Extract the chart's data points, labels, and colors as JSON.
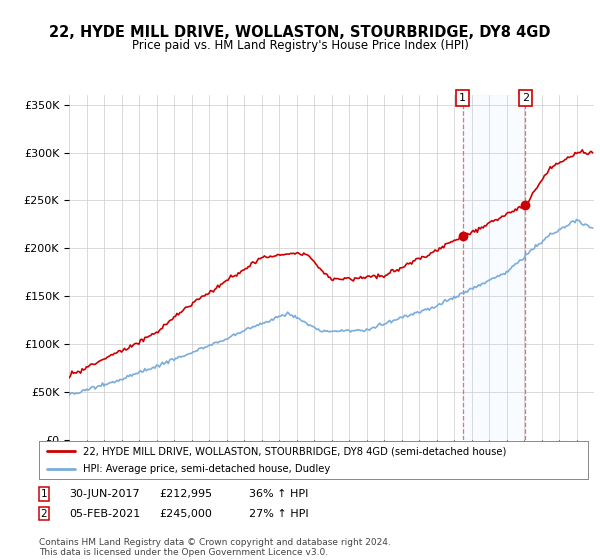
{
  "title": "22, HYDE MILL DRIVE, WOLLASTON, STOURBRIDGE, DY8 4GD",
  "subtitle": "Price paid vs. HM Land Registry's House Price Index (HPI)",
  "ylim": [
    0,
    360000
  ],
  "yticks": [
    0,
    50000,
    100000,
    150000,
    200000,
    250000,
    300000,
    350000
  ],
  "ytick_labels": [
    "£0",
    "£50K",
    "£100K",
    "£150K",
    "£200K",
    "£250K",
    "£300K",
    "£350K"
  ],
  "background_color": "#ffffff",
  "plot_bg_color": "#ffffff",
  "grid_color": "#cccccc",
  "sale1_x": 2017.5,
  "sale1_price": 212995,
  "sale2_x": 2021.08,
  "sale2_price": 245000,
  "hpi_color": "#7aaddb",
  "price_color": "#cc0000",
  "shade_color": "#ddeeff",
  "vline_color": "#dd6666",
  "legend_price_label": "22, HYDE MILL DRIVE, WOLLASTON, STOURBRIDGE, DY8 4GD (semi-detached house)",
  "legend_hpi_label": "HPI: Average price, semi-detached house, Dudley",
  "footer": "Contains HM Land Registry data © Crown copyright and database right 2024.\nThis data is licensed under the Open Government Licence v3.0.",
  "title_fontsize": 10.5,
  "subtitle_fontsize": 8.5,
  "label_num1": "1",
  "label_num2": "2",
  "ann1_date": "30-JUN-2017",
  "ann1_price": "£212,995",
  "ann1_hpi": "36% ↑ HPI",
  "ann2_date": "05-FEB-2021",
  "ann2_price": "£245,000",
  "ann2_hpi": "27% ↑ HPI"
}
